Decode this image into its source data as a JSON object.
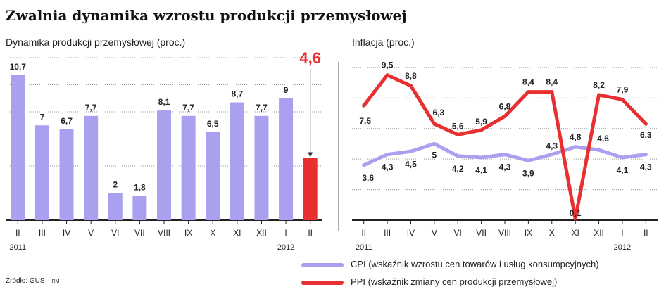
{
  "title": "Zwalnia dynamika wzrostu produkcji przemysłowej",
  "source": "Źródło: GUS",
  "author_mark": "RM",
  "colors": {
    "bar": "#a9a1ef",
    "highlight": "#e83030",
    "cpi": "#a9a1ef",
    "ppi": "#e83030",
    "grid": "#9a9a9a"
  },
  "chart_data": [
    {
      "type": "bar",
      "title": "Dynamika produkcji przemysłowej (proc.)",
      "categories": [
        "II",
        "III",
        "IV",
        "V",
        "VI",
        "VII",
        "VIII",
        "IX",
        "X",
        "XI",
        "XII",
        "I",
        "II"
      ],
      "year_labels": [
        {
          "index": 0,
          "text": "2011"
        },
        {
          "index": 11,
          "text": "2012"
        }
      ],
      "values": [
        10.7,
        7,
        6.7,
        7.7,
        2,
        1.8,
        8.1,
        7.7,
        6.5,
        8.7,
        7.7,
        9,
        4.6
      ],
      "value_labels": [
        "10,7",
        "7",
        "6,7",
        "7,7",
        "2",
        "1,8",
        "8,1",
        "7,7",
        "6,5",
        "8,7",
        "7,7",
        "9",
        "4,6"
      ],
      "highlight_index": 12,
      "ylim": [
        0,
        12
      ],
      "grid": true
    },
    {
      "type": "line",
      "title": "Inflacja (proc.)",
      "categories": [
        "II",
        "III",
        "IV",
        "V",
        "VI",
        "VII",
        "VIII",
        "IX",
        "X",
        "XI",
        "XII",
        "I",
        "II"
      ],
      "year_labels": [
        {
          "index": 0,
          "text": "2011"
        },
        {
          "index": 11,
          "text": "2012"
        }
      ],
      "ylim": [
        0,
        10.5
      ],
      "grid": true,
      "series": [
        {
          "name": "CPI (wskaźnik wzrostu cen towarów i usług konsumpcyjnych)",
          "values": [
            3.6,
            4.3,
            4.5,
            5,
            4.2,
            4.1,
            4.3,
            3.9,
            4.3,
            4.8,
            4.6,
            4.1,
            4.3
          ],
          "labels": [
            "3,6",
            "4,3",
            "4,5",
            "5",
            "4,2",
            "4,1",
            "4,3",
            "3,9",
            "4,3",
            "4,8",
            "4,6",
            "4,1",
            "4,3"
          ]
        },
        {
          "name": "PPI (wskaźnik zmiany cen produkcji przemysłowej)",
          "values": [
            7.5,
            9.5,
            8.8,
            6.3,
            5.6,
            5.9,
            6.8,
            8.4,
            8.4,
            0.1,
            8.2,
            7.9,
            6.3
          ],
          "labels": [
            "7,5",
            "9,5",
            "8,8",
            "6,3",
            "5,6",
            "5,9",
            "6,8",
            "8,4",
            "8,4",
            "0,1",
            "8,2",
            "7,9",
            "6,3"
          ]
        }
      ]
    }
  ]
}
